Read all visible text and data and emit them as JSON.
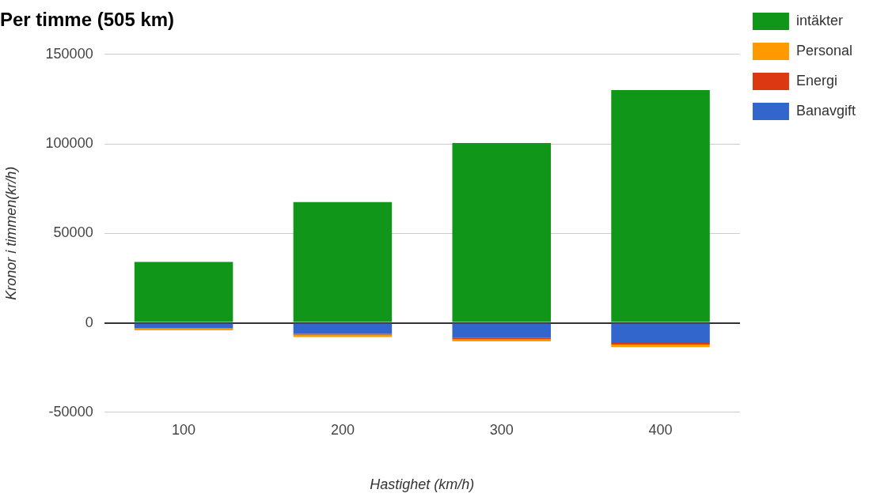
{
  "chart_data": {
    "type": "bar",
    "title": "Per timme (505 km)",
    "xlabel": "Hastighet (km/h)",
    "ylabel": "Kronor i timmen(kr/h)",
    "categories": [
      "100",
      "200",
      "300",
      "400"
    ],
    "stacked": true,
    "series": [
      {
        "name": "intäkter",
        "color": "#109618",
        "values": [
          34000,
          67500,
          100500,
          130000
        ]
      },
      {
        "name": "Banavgift",
        "color": "#3366cc",
        "values": [
          -3000,
          -6200,
          -8500,
          -11200
        ]
      },
      {
        "name": "Energi",
        "color": "#dc3912",
        "values": [
          -200,
          -500,
          -800,
          -900
        ]
      },
      {
        "name": "Personal",
        "color": "#ff9900",
        "values": [
          -1000,
          -1200,
          -1000,
          -1500
        ]
      }
    ],
    "ylim": [
      -50000,
      150000
    ],
    "yticks": [
      -50000,
      0,
      50000,
      100000,
      150000
    ],
    "grid": "y",
    "legend": "right"
  }
}
